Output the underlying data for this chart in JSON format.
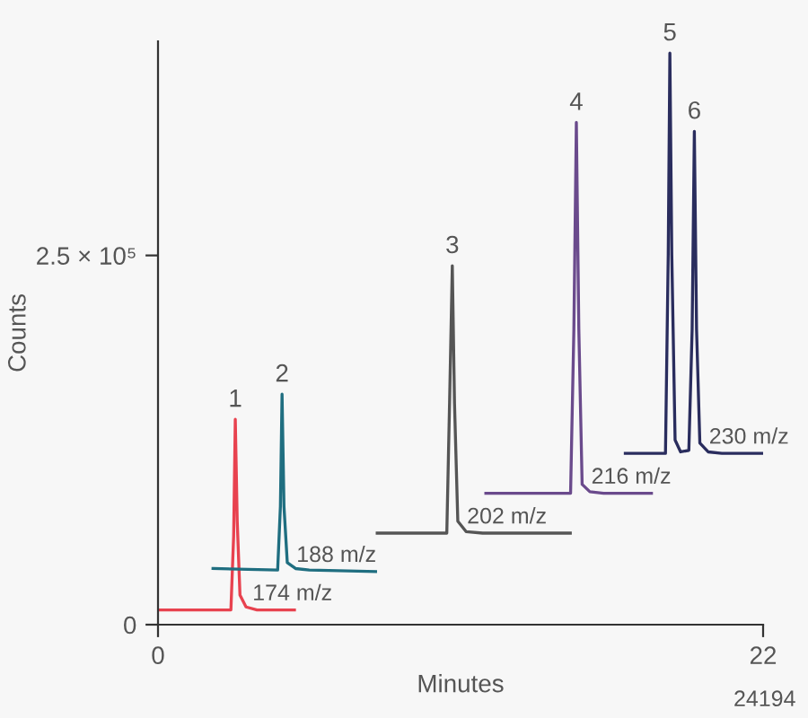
{
  "chart_data": {
    "type": "line",
    "xlabel": "Minutes",
    "ylabel": "Counts",
    "xlim": [
      0,
      22
    ],
    "xticks": [
      0,
      22
    ],
    "ylim": [
      0,
      395000
    ],
    "yticks": [
      0,
      {
        "value": 250000,
        "label": "2.5 × 10⁵"
      }
    ],
    "grid": false,
    "legend": false,
    "marker": "none",
    "line_style": "solid",
    "series": [
      {
        "name": "174 m/z",
        "color": "#e8424f",
        "x": [
          0,
          2.65,
          2.75,
          2.81,
          2.88,
          2.98,
          3.2,
          3.6,
          4.96
        ],
        "values": [
          10000,
          10000,
          60000,
          139000,
          70000,
          20000,
          12000,
          10000,
          10000
        ]
      },
      {
        "name": "188 m/z",
        "color": "#1f6e80",
        "x": [
          2.0,
          4.35,
          4.45,
          4.51,
          4.58,
          4.7,
          5.0,
          5.5,
          7.91
        ],
        "values": [
          38000,
          37000,
          80000,
          156000,
          80000,
          42000,
          38000,
          37000,
          36000
        ]
      },
      {
        "name": "202 m/z",
        "color": "#555555",
        "x": [
          7.97,
          10.5,
          10.6,
          10.7,
          10.78,
          10.9,
          11.2,
          11.8,
          14.99
        ],
        "values": [
          62000,
          62000,
          150000,
          243000,
          150000,
          70000,
          63000,
          62000,
          62000
        ]
      },
      {
        "name": "216 m/z",
        "color": "#6a4a8c",
        "x": [
          11.92,
          15.0,
          15.12,
          15.21,
          15.3,
          15.42,
          15.7,
          16.2,
          17.94
        ],
        "values": [
          89000,
          89000,
          200000,
          340000,
          200000,
          95000,
          90000,
          89000,
          89000
        ]
      },
      {
        "name": "230 m/z",
        "color": "#2a2d5e",
        "x": [
          16.99,
          18.45,
          18.55,
          18.61,
          18.68,
          18.8,
          19.0,
          19.3,
          19.42,
          19.5,
          19.58,
          19.7,
          20.0,
          20.5,
          21.95
        ],
        "values": [
          116000,
          116000,
          250000,
          387000,
          250000,
          125000,
          117000,
          118000,
          200000,
          334000,
          200000,
          123000,
          117000,
          116000,
          116000
        ]
      }
    ],
    "annotations": [
      {
        "text": "1",
        "x": 2.81,
        "y": 139000
      },
      {
        "text": "2",
        "x": 4.51,
        "y": 156000
      },
      {
        "text": "3",
        "x": 10.7,
        "y": 243000
      },
      {
        "text": "4",
        "x": 15.21,
        "y": 340000
      },
      {
        "text": "5",
        "x": 18.61,
        "y": 387000
      },
      {
        "text": "6",
        "x": 19.5,
        "y": 334000
      },
      "24194"
    ]
  }
}
